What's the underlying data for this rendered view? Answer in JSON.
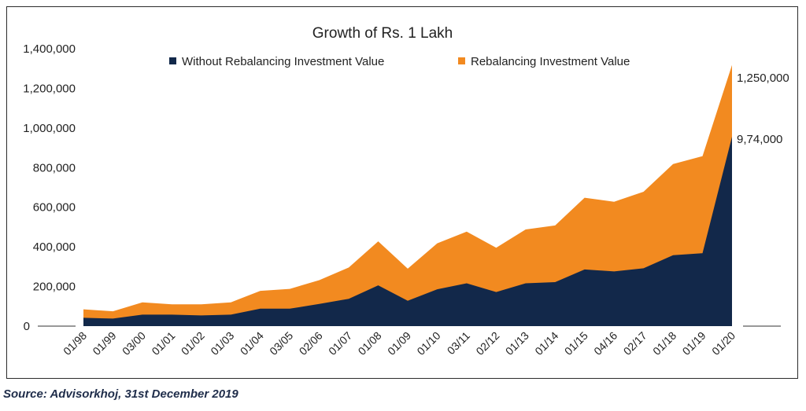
{
  "chart_data": {
    "type": "area",
    "title": "Growth of Rs. 1 Lakh",
    "xlabel": "",
    "ylabel": "",
    "ylim": [
      0,
      1400000
    ],
    "yticks": [
      0,
      200000,
      400000,
      600000,
      800000,
      1000000,
      1200000,
      1400000
    ],
    "ytick_labels": [
      "0",
      "200,000",
      "400,000",
      "600,000",
      "800,000",
      "1,000,000",
      "1,200,000",
      "1,400,000"
    ],
    "grid": false,
    "legend_position": "top",
    "categories": [
      "01/98",
      "01/99",
      "03/00",
      "01/01",
      "01/02",
      "01/03",
      "01/04",
      "03/05",
      "02/06",
      "01/07",
      "01/08",
      "01/09",
      "01/10",
      "03/11",
      "02/12",
      "01/13",
      "01/14",
      "01/15",
      "04/16",
      "02/17",
      "01/18",
      "01/19",
      "01/20"
    ],
    "series": [
      {
        "name": "Rebalancing Investment Value",
        "color": "#f28a20",
        "values": [
          85000,
          75000,
          120000,
          110000,
          110000,
          120000,
          178000,
          188000,
          232000,
          296000,
          428000,
          290000,
          418000,
          477000,
          396000,
          488000,
          508000,
          648000,
          628000,
          678000,
          818000,
          858000,
          1318000
        ]
      },
      {
        "name": "Without Rebalancing Investment Value",
        "color": "#12284a",
        "values": [
          42000,
          38000,
          58000,
          58000,
          54000,
          58000,
          88000,
          88000,
          112000,
          138000,
          206000,
          128000,
          186000,
          216000,
          172000,
          216000,
          222000,
          286000,
          276000,
          292000,
          358000,
          368000,
          956000
        ]
      }
    ],
    "annotations": [
      "1,250,000",
      "9,74,000"
    ]
  },
  "source": "Source: Advisorkhoj, 31st December 2019"
}
